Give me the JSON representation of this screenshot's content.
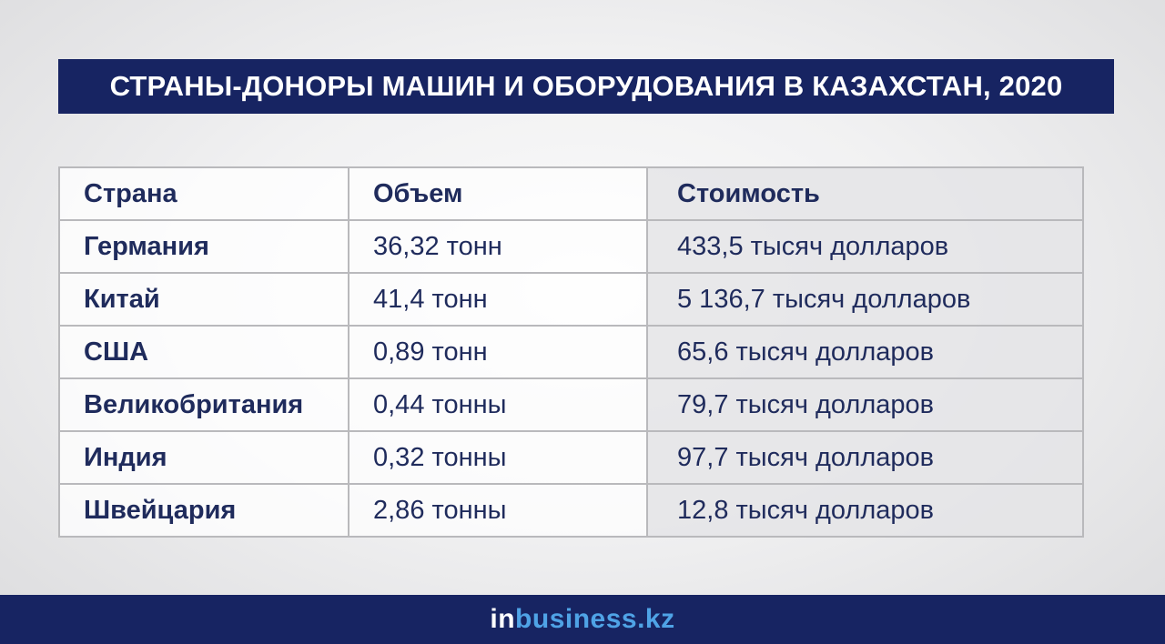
{
  "title": "СТРАНЫ-ДОНОРЫ МАШИН И ОБОРУДОВАНИЯ В КАЗАХСТАН, 2020",
  "table": {
    "headers": [
      "Страна",
      "Объем",
      "Стоимость"
    ],
    "rows": [
      {
        "country": "Германия",
        "volume": "36,32 тонн",
        "cost": "433,5 тысяч долларов"
      },
      {
        "country": "Китай",
        "volume": "41,4 тонн",
        "cost": "5 136,7 тысяч долларов"
      },
      {
        "country": "США",
        "volume": "0,89 тонн",
        "cost": "65,6 тысяч долларов"
      },
      {
        "country": "Великобритания",
        "volume": "0,44 тонны",
        "cost": "79,7 тысяч долларов"
      },
      {
        "country": "Индия",
        "volume": "0,32 тонны",
        "cost": "97,7 тысяч долларов"
      },
      {
        "country": "Швейцария",
        "volume": "2,86 тонны",
        "cost": "12,8 тысяч долларов"
      }
    ]
  },
  "footer": {
    "logo_in": "in",
    "logo_rest": "business.kz"
  },
  "colors": {
    "navy": "#172462",
    "logo_blue": "#4fa3e6",
    "text": "#1f2b5c"
  }
}
